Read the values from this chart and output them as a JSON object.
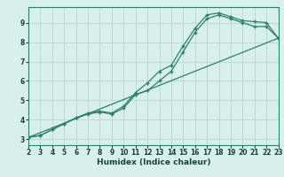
{
  "xlabel": "Humidex (Indice chaleur)",
  "bg_color": "#d8f0ec",
  "grid_color": "#c0d8d4",
  "line_color": "#2e7d6e",
  "marker": "+",
  "xlim": [
    2,
    23
  ],
  "ylim": [
    2.7,
    9.8
  ],
  "xticks": [
    2,
    3,
    4,
    5,
    6,
    7,
    8,
    9,
    10,
    11,
    12,
    13,
    14,
    15,
    16,
    17,
    18,
    19,
    20,
    21,
    22,
    23
  ],
  "yticks": [
    3,
    4,
    5,
    6,
    7,
    8,
    9
  ],
  "line1_x": [
    2,
    3,
    4,
    5,
    6,
    7,
    8,
    9,
    10,
    11,
    12,
    13,
    14,
    15,
    16,
    17,
    18,
    19,
    20,
    21,
    22,
    23
  ],
  "line1_y": [
    3.1,
    3.2,
    3.5,
    3.8,
    4.1,
    4.3,
    4.4,
    4.3,
    4.6,
    5.3,
    5.5,
    6.0,
    6.5,
    7.5,
    8.5,
    9.2,
    9.4,
    9.2,
    9.0,
    8.8,
    8.8,
    8.2
  ],
  "line2_x": [
    2,
    3,
    4,
    5,
    6,
    7,
    8,
    9,
    10,
    11,
    12,
    13,
    14,
    15,
    16,
    17,
    18,
    19,
    20,
    21,
    22,
    23
  ],
  "line2_y": [
    3.1,
    3.2,
    3.5,
    3.8,
    4.1,
    4.35,
    4.45,
    4.35,
    4.7,
    5.4,
    5.9,
    6.5,
    6.8,
    7.8,
    8.7,
    9.4,
    9.5,
    9.3,
    9.1,
    9.05,
    9.0,
    8.2
  ],
  "line3_x": [
    2,
    23
  ],
  "line3_y": [
    3.1,
    8.2
  ],
  "tick_fontsize": 5.5,
  "xlabel_fontsize": 6.5
}
